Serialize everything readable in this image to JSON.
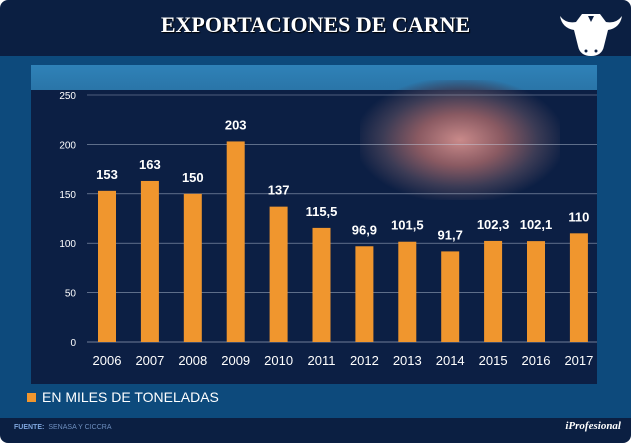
{
  "title": "EXPORTACIONES DE CARNE",
  "legend": "EN MILES DE TONELADAS",
  "footer": {
    "label": "FUENTE:",
    "source": "SENASA Y CICCRA",
    "brand": "iProfesional"
  },
  "colors": {
    "bar": "#f0962e",
    "grid": "#c8d3e6"
  },
  "chart_data": {
    "type": "bar",
    "title": "EXPORTACIONES DE CARNE",
    "categories": [
      "2006",
      "2007",
      "2008",
      "2009",
      "2010",
      "2011",
      "2012",
      "2013",
      "2014",
      "2015",
      "2016",
      "2017"
    ],
    "values": [
      153,
      163,
      150,
      203,
      137,
      115.5,
      96.9,
      101.5,
      91.7,
      102.3,
      102.1,
      110
    ],
    "value_labels": [
      "153",
      "163",
      "150",
      "203",
      "137",
      "115,5",
      "96,9",
      "101,5",
      "91,7",
      "102,3",
      "102,1",
      "110"
    ],
    "yticks": [
      "0",
      "50",
      "100",
      "150",
      "200",
      "250"
    ],
    "ylim": [
      0,
      250
    ],
    "ylabel": "EN MILES DE TONELADAS",
    "grid": true
  }
}
